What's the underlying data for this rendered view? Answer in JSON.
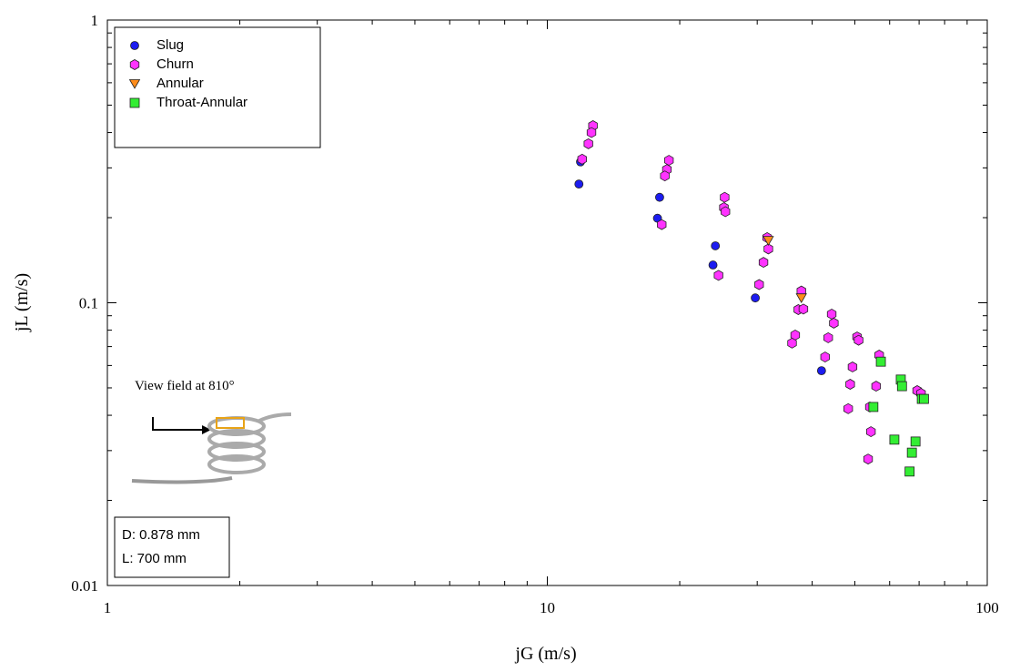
{
  "chart_data": {
    "type": "scatter",
    "x_label": "jG (m/s)",
    "y_label": "jL (m/s)",
    "xlim": [
      1,
      100
    ],
    "ylim": [
      0.01,
      1
    ],
    "xticks": [
      1,
      10,
      100
    ],
    "yticks": [
      0.01,
      0.1,
      1
    ],
    "xscale": "log",
    "yscale": "log",
    "legend": "upper left",
    "annotations": [
      "View field at 810°",
      "D: 0.878 mm",
      "L: 700 mm"
    ],
    "series": [
      {
        "name": "Slug",
        "color": "#1c1cf0",
        "marker": "circle",
        "x": [
          11.8,
          11.9,
          17.8,
          18.0,
          24.1,
          23.8,
          29.7,
          42.0
        ],
        "values": [
          0.263,
          0.315,
          0.199,
          0.236,
          0.159,
          0.136,
          0.104,
          0.0575
        ]
      },
      {
        "name": "Churn",
        "color": "#ff33ff",
        "marker": "hexagon",
        "x": [
          12.7,
          12.6,
          12.4,
          12.0,
          18.9,
          18.7,
          18.5,
          18.2,
          25.3,
          25.2,
          25.4,
          24.5,
          31.6,
          31.8,
          31.0,
          30.3,
          37.8,
          37.2,
          38.2,
          36.6,
          36.0,
          44.3,
          44.8,
          43.5,
          42.8,
          50.6,
          51.0,
          49.4,
          48.8,
          48.3,
          54.4,
          56.8,
          55.9,
          54.1,
          53.6,
          69.3,
          70.7
        ],
        "values": [
          0.423,
          0.4,
          0.365,
          0.322,
          0.319,
          0.296,
          0.281,
          0.189,
          0.236,
          0.217,
          0.21,
          0.125,
          0.17,
          0.155,
          0.139,
          0.116,
          0.11,
          0.0946,
          0.095,
          0.0769,
          0.072,
          0.0912,
          0.0847,
          0.0752,
          0.0643,
          0.0757,
          0.0737,
          0.0593,
          0.0515,
          0.0422,
          0.035,
          0.0653,
          0.0507,
          0.0428,
          0.028,
          0.0489,
          0.0478
        ]
      },
      {
        "name": "Annular",
        "color": "#ff8c1a",
        "marker": "triangle-down",
        "x": [
          31.8,
          37.8
        ],
        "values": [
          0.166,
          0.104
        ]
      },
      {
        "name": "Throat-Annular",
        "color": "#33ee33",
        "marker": "square",
        "x": [
          57.3,
          63.6,
          64.0,
          71.0,
          71.8,
          55.1,
          61.5,
          68.7,
          67.4,
          66.6
        ],
        "values": [
          0.0619,
          0.0535,
          0.0507,
          0.0457,
          0.0457,
          0.0428,
          0.0328,
          0.0323,
          0.0295,
          0.0253
        ]
      }
    ]
  }
}
